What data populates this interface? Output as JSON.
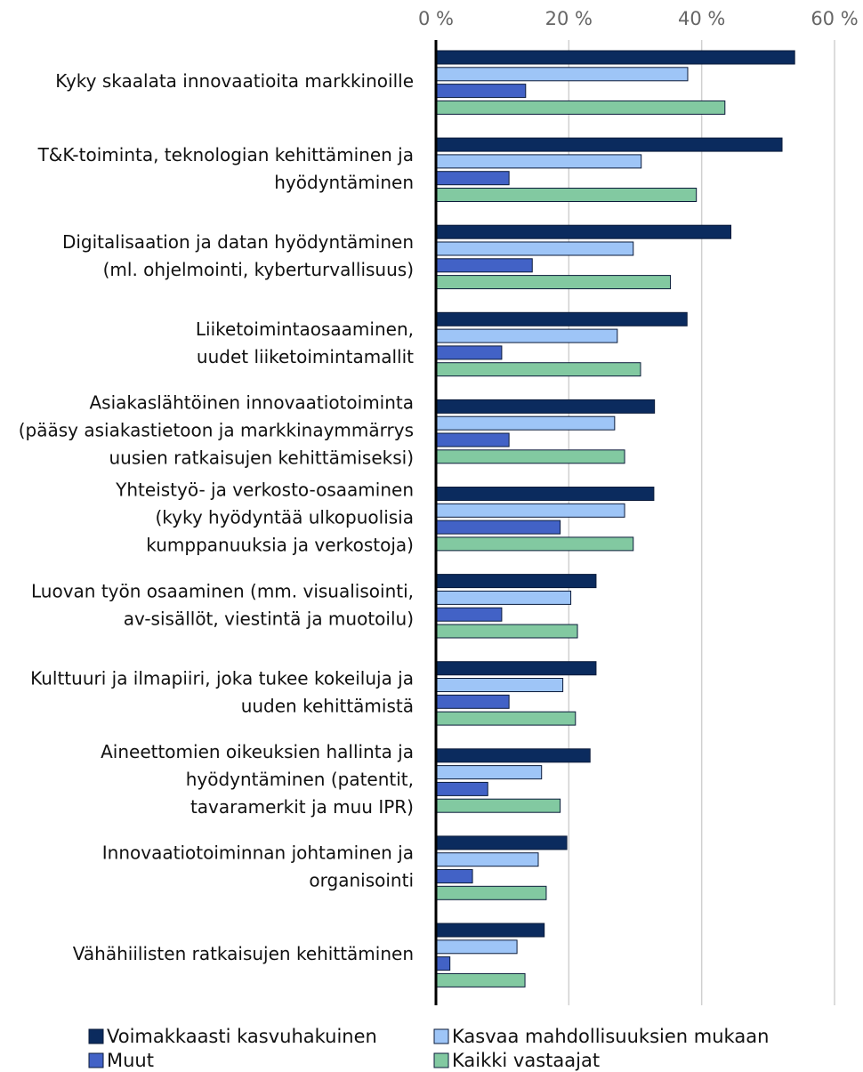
{
  "chart_data": {
    "type": "bar",
    "orientation": "horizontal",
    "categories": [
      [
        "Kyky skaalata innovaatioita markkinoille"
      ],
      [
        "T&K-toiminta, teknologian kehittäminen ja",
        "hyödyntäminen"
      ],
      [
        "Digitalisaation ja datan hyödyntäminen",
        "(ml. ohjelmointi, kyberturvallisuus)"
      ],
      [
        "Liiketoimintaosaaminen,",
        "uudet liiketoimintamallit"
      ],
      [
        "Asiakaslähtöinen innovaatiotoiminta",
        "(pääsy asiakastietoon ja markkinaymmärrys",
        "uusien ratkaisujen kehittämiseksi)"
      ],
      [
        "Yhteistyö- ja verkosto-osaaminen",
        "(kyky hyödyntää ulkopuolisia",
        "kumppanuuksia ja verkostoja)"
      ],
      [
        "Luovan työn osaaminen (mm. visualisointi,",
        "av-sisällöt, viestintä ja muotoilu)"
      ],
      [
        "Kulttuuri ja ilmapiiri, joka tukee kokeiluja ja",
        "uuden kehittämistä"
      ],
      [
        "Aineettomien oikeuksien hallinta ja",
        "hyödyntäminen (patentit,",
        "tavaramerkit ja muu IPR)"
      ],
      [
        "Innovaatiotoiminnan johtaminen ja",
        "organisointi"
      ],
      [
        "Vähähiilisten ratkaisujen kehittäminen"
      ]
    ],
    "series": [
      {
        "name": "Voimakkaasti kasvuhakuinen",
        "color": "#0b2b5e",
        "values": [
          54.0,
          52.1,
          44.4,
          37.8,
          32.9,
          32.8,
          24.1,
          24.1,
          23.2,
          19.7,
          16.3
        ]
      },
      {
        "name": "Kasvaa mahdollisuuksien mukaan",
        "color": "#9ec5f7",
        "values": [
          37.9,
          30.9,
          29.7,
          27.3,
          26.9,
          28.4,
          20.3,
          19.1,
          15.9,
          15.4,
          12.2
        ]
      },
      {
        "name": "Muut",
        "color": "#4262c6",
        "values": [
          13.5,
          11.0,
          14.5,
          9.9,
          11.0,
          18.7,
          9.9,
          11.0,
          7.8,
          5.5,
          2.1
        ]
      },
      {
        "name": "Kaikki vastaajat",
        "color": "#82c9a1",
        "values": [
          43.5,
          39.2,
          35.3,
          30.8,
          28.4,
          29.7,
          21.3,
          21.0,
          18.7,
          16.6,
          13.4
        ]
      }
    ],
    "xlim": [
      0,
      60
    ],
    "xticks": [
      {
        "value": 0,
        "label": "0 %"
      },
      {
        "value": 20,
        "label": "20 %"
      },
      {
        "value": 40,
        "label": "40 %"
      },
      {
        "value": 60,
        "label": "60 %"
      }
    ],
    "grid": true,
    "legend": "bottom"
  }
}
